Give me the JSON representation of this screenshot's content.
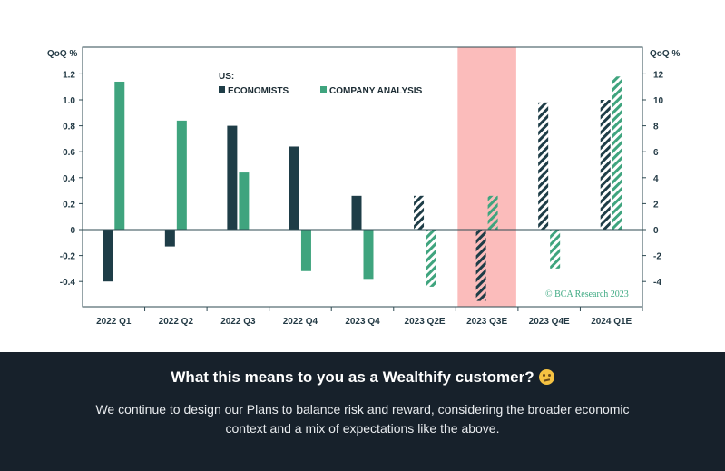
{
  "chart_data": {
    "type": "bar",
    "legend_title": "US:",
    "legend_position": "top-left",
    "y_unit_left": "QoQ %",
    "y_unit_right": "QoQ %",
    "categories": [
      "2022 Q1",
      "2022 Q2",
      "2022 Q3",
      "2022 Q4",
      "2023 Q4",
      "2023 Q2E",
      "2023 Q3E",
      "2023 Q4E",
      "2024 Q1E"
    ],
    "series": [
      {
        "name": "ECONOMISTS",
        "color": "#1e3d47",
        "values": [
          -0.4,
          -0.13,
          0.8,
          0.64,
          0.26,
          0.26,
          -0.55,
          0.98,
          1.0
        ],
        "hatched_from_index": 5
      },
      {
        "name": "COMPANY ANALYSIS",
        "color": "#3fa47e",
        "values": [
          1.14,
          0.84,
          0.44,
          -0.32,
          -0.38,
          -0.44,
          0.26,
          -0.3,
          1.18
        ],
        "hatched_from_index": 5
      }
    ],
    "ylim_left": [
      -0.55,
      1.3
    ],
    "yticks_left": [
      "1.2",
      "1.0",
      "0.8",
      "0.6",
      "0.4",
      "0.2",
      "0",
      "-0.2",
      "-0.4"
    ],
    "ylim_right": [
      -5.5,
      13
    ],
    "yticks_right": [
      "12",
      "10",
      "8",
      "6",
      "4",
      "2",
      "0",
      "-2",
      "-4"
    ],
    "highlight_category": "2023 Q3E",
    "highlight_color": "#fbbcbb",
    "credit": "© BCA Research 2023",
    "grid": false
  },
  "footer": {
    "title": "What this means to you as a Wealthify customer?",
    "emoji": "thinking-face",
    "body": "We continue to design our Plans to balance risk and reward, considering the broader economic context and a mix of expectations like the above."
  }
}
